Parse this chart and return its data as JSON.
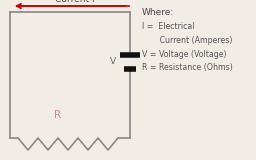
{
  "bg_color": "#f2ede4",
  "circuit_color": "#888888",
  "arrow_color": "#cc0000",
  "title_text": "Current I",
  "where_text": "Where:",
  "legend_lines": [
    "I =  Electrical",
    "       Current (Amperes)",
    "V = Voltage (Voltage)",
    "R = Resistance (Ohms)"
  ],
  "R_label": "R",
  "V_label": "V",
  "font_size": 6.5,
  "font_family": "DejaVu Sans"
}
